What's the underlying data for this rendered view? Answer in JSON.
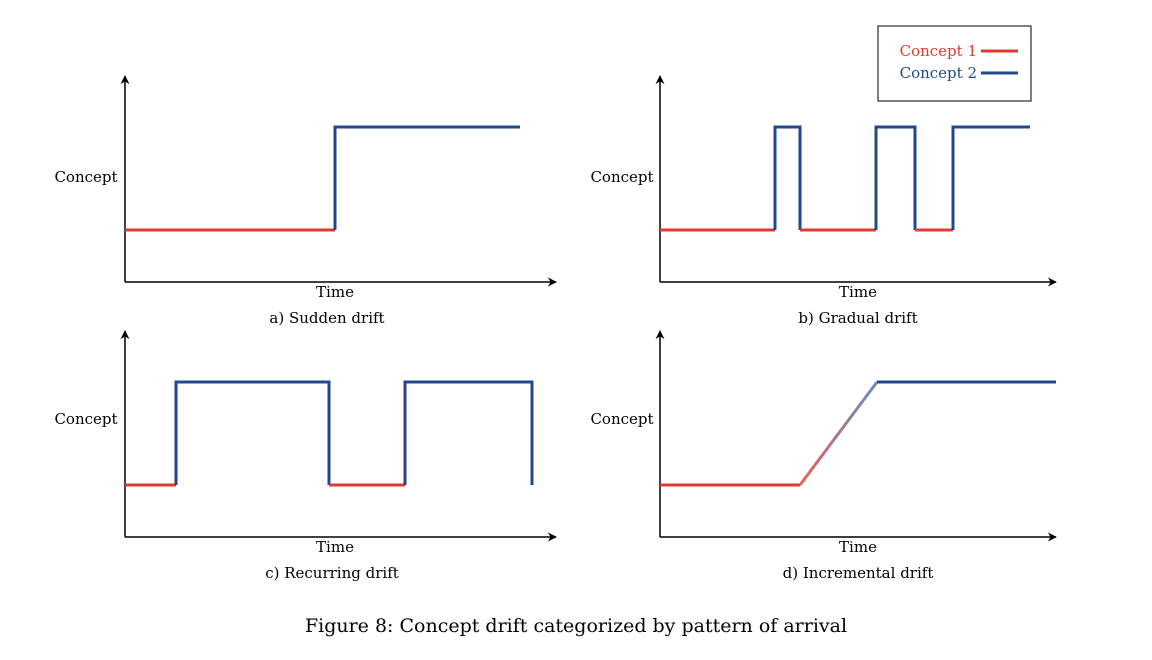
{
  "figure_caption": "Figure 8: Concept drift categorized by pattern of arrival",
  "colors": {
    "concept1": "#e03a2f",
    "concept2": "#21488f"
  },
  "legend": {
    "items": [
      {
        "label": "Concept 1",
        "color": "#e03a2f"
      },
      {
        "label": "Concept 2",
        "color": "#21488f"
      }
    ]
  },
  "panels": [
    {
      "id": "a",
      "caption": "a) Sudden drift",
      "ylabel": "Concept",
      "xlabel": "Time",
      "pattern": "sudden"
    },
    {
      "id": "b",
      "caption": "b) Gradual drift",
      "ylabel": "Concept",
      "xlabel": "Time",
      "pattern": "gradual"
    },
    {
      "id": "c",
      "caption": "c) Recurring drift",
      "ylabel": "Concept",
      "xlabel": "Time",
      "pattern": "recurring"
    },
    {
      "id": "d",
      "caption": "d) Incremental drift",
      "ylabel": "Concept",
      "xlabel": "Time",
      "pattern": "incremental"
    }
  ]
}
